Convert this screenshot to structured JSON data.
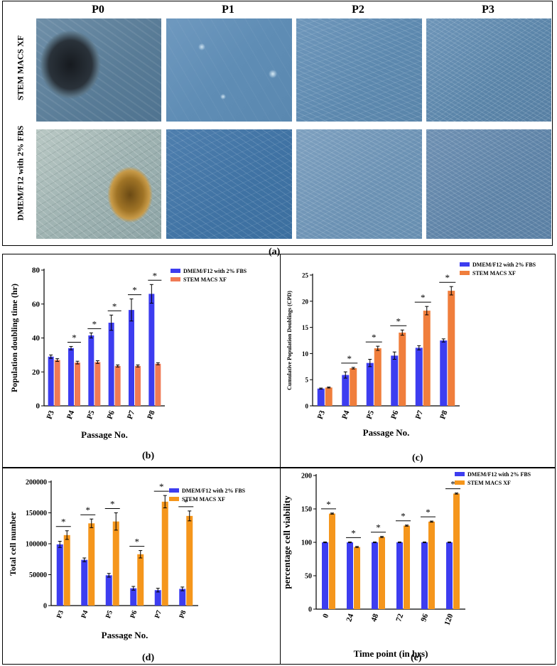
{
  "panel_a": {
    "columns": [
      "P0",
      "P1",
      "P2",
      "P3"
    ],
    "rows": [
      "STEM MACS XF",
      "DMEM/F12 with 2% FBS"
    ],
    "caption": "(a)"
  },
  "captions": {
    "b": "(b)",
    "c": "(c)",
    "d": "(d)",
    "e": "(e)"
  },
  "colors": {
    "dmem": "#3d3df0",
    "stem_b": "#f07a55",
    "stem_c": "#f07e3c",
    "stem_d": "#f5961c",
    "stem_e": "#f5961c",
    "sig": "#000000"
  },
  "chart_data": [
    {
      "id": "b",
      "type": "bar",
      "categories": [
        "P3",
        "P4",
        "P5",
        "P6",
        "P7",
        "P8"
      ],
      "series": [
        {
          "name": "DMEM/F12 with 2% FBS",
          "values": [
            29,
            34,
            41.5,
            49,
            56.5,
            66
          ],
          "errors": [
            1,
            1,
            1.5,
            4.5,
            6.5,
            5.5
          ]
        },
        {
          "name": "STEM MACS XF",
          "values": [
            27,
            25.5,
            25.8,
            23.5,
            23.5,
            24.8
          ],
          "errors": [
            0.8,
            0.8,
            0.8,
            0.6,
            0.6,
            0.6
          ]
        }
      ],
      "significance": [
        "",
        "*",
        "*",
        "*",
        "*",
        "*"
      ],
      "xlabel": "Passage No.",
      "ylabel": "Population doubling time (hr)",
      "ylim": [
        0,
        80
      ],
      "yticks": [
        0,
        20,
        40,
        60,
        80
      ],
      "legend": "top-right"
    },
    {
      "id": "c",
      "type": "bar",
      "categories": [
        "P3",
        "P4",
        "P5",
        "P6",
        "P7",
        "P8"
      ],
      "series": [
        {
          "name": "DMEM/F12 with 2% FBS",
          "values": [
            3.3,
            5.9,
            8.2,
            9.6,
            11.1,
            12.5
          ],
          "errors": [
            0.1,
            0.6,
            0.7,
            0.7,
            0.4,
            0.3
          ]
        },
        {
          "name": "STEM MACS XF",
          "values": [
            3.5,
            7.2,
            11,
            14,
            18.2,
            22
          ],
          "errors": [
            0.1,
            0.15,
            0.4,
            0.5,
            0.8,
            0.8
          ]
        }
      ],
      "significance": [
        "",
        "*",
        "*",
        "*",
        "*",
        "*"
      ],
      "xlabel": "Passage No.",
      "ylabel": "Cumulative Population Doublings (CPD)",
      "ylim": [
        0,
        25
      ],
      "yticks": [
        0,
        5,
        10,
        15,
        20,
        25
      ],
      "legend": "top-right"
    },
    {
      "id": "d",
      "type": "bar",
      "categories": [
        "P3",
        "P4",
        "P5",
        "P6",
        "P7",
        "P8"
      ],
      "series": [
        {
          "name": "DMEM/F12 with 2% FBS",
          "values": [
            99000,
            74000,
            49000,
            28000,
            25000,
            27000
          ],
          "errors": [
            5000,
            3000,
            3000,
            3000,
            3000,
            3000
          ]
        },
        {
          "name": "STEM MACS XF",
          "values": [
            114000,
            133000,
            136000,
            83000,
            168000,
            145000
          ],
          "errors": [
            7000,
            7000,
            14000,
            6000,
            10000,
            8000
          ]
        }
      ],
      "significance": [
        "*",
        "*",
        "*",
        "*",
        "*",
        "*"
      ],
      "xlabel": "Passage No.",
      "ylabel": "Total cell number",
      "ylim": [
        0,
        200000
      ],
      "yticks": [
        0,
        50000,
        100000,
        150000,
        200000
      ],
      "legend": "top-right"
    },
    {
      "id": "e",
      "type": "bar",
      "categories": [
        "0",
        "24",
        "48",
        "72",
        "96",
        "120"
      ],
      "series": [
        {
          "name": "DMEM/F12 with 2% FBS",
          "values": [
            100,
            100,
            100,
            100,
            100,
            100
          ],
          "errors": [
            0.6,
            0.6,
            0.6,
            0.6,
            0.6,
            0.6
          ]
        },
        {
          "name": "STEM MACS XF",
          "values": [
            143,
            93,
            108,
            125,
            131,
            173
          ],
          "errors": [
            0.8,
            0.8,
            0.8,
            0.8,
            0.8,
            0.8
          ]
        }
      ],
      "significance": [
        "*",
        "*",
        "*",
        "*",
        "*",
        "*"
      ],
      "xlabel": "Time point (in hrs)",
      "ylabel": "percentage cell viability",
      "ylim": [
        0,
        200
      ],
      "yticks": [
        0,
        50,
        100,
        150,
        200
      ],
      "legend": "top-right"
    }
  ]
}
